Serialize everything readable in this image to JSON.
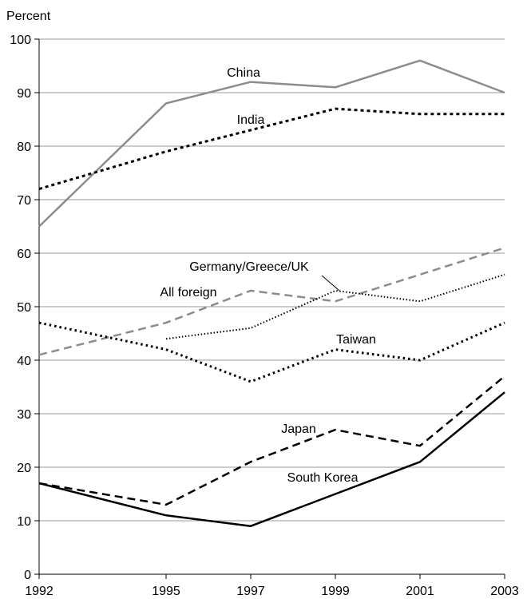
{
  "chart_data": {
    "type": "line",
    "title": "",
    "xlabel": "",
    "ylabel": "Percent",
    "ylim": [
      0,
      100
    ],
    "xlim": [
      1992,
      2003
    ],
    "yticks": [
      0,
      10,
      20,
      30,
      40,
      50,
      60,
      70,
      80,
      90,
      100
    ],
    "xticks": [
      1992,
      1995,
      1997,
      1999,
      2001,
      2003
    ],
    "grid": true,
    "legend": "none (series labeled directly on lines)",
    "series": [
      {
        "name": "China",
        "color": "#8c8c8c",
        "style": "solid",
        "x": [
          1992,
          1995,
          1997,
          1999,
          2001,
          2003
        ],
        "y": [
          65,
          88,
          92,
          91,
          96,
          90
        ]
      },
      {
        "name": "India",
        "color": "#000000",
        "style": "dotted-dense",
        "x": [
          1992,
          1995,
          1997,
          1999,
          2001,
          2003
        ],
        "y": [
          72,
          79,
          83,
          87,
          86,
          86
        ]
      },
      {
        "name": "All foreign",
        "color": "#8c8c8c",
        "style": "dashed",
        "x": [
          1992,
          1995,
          1997,
          1999,
          2001,
          2003
        ],
        "y": [
          41,
          47,
          53,
          51,
          56,
          61
        ]
      },
      {
        "name": "Germany/Greece/UK",
        "color": "#000000",
        "style": "fine-dotted",
        "x": [
          1995,
          1997,
          1999,
          2001,
          2003
        ],
        "y": [
          44,
          46,
          53,
          51,
          56
        ]
      },
      {
        "name": "Taiwan",
        "color": "#000000",
        "style": "dotted",
        "x": [
          1992,
          1995,
          1997,
          1999,
          2001,
          2003
        ],
        "y": [
          47,
          42,
          36,
          42,
          40,
          47
        ]
      },
      {
        "name": "Japan",
        "color": "#000000",
        "style": "dashed",
        "x": [
          1992,
          1995,
          1997,
          1999,
          2001,
          2003
        ],
        "y": [
          17,
          13,
          21,
          27,
          24,
          37
        ]
      },
      {
        "name": "South Korea",
        "color": "#000000",
        "style": "solid",
        "x": [
          1992,
          1995,
          1997,
          1999,
          2001,
          2003
        ],
        "y": [
          17,
          11,
          9,
          15,
          21,
          34
        ]
      }
    ]
  }
}
